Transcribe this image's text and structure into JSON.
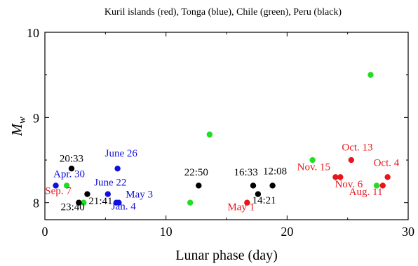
{
  "chart_data": {
    "type": "scatter",
    "title": "Kuril islands (red), Tonga (blue), Chile (green), Peru (black)",
    "xlabel": "Lunar phase (day)",
    "ylabel": "M",
    "ylabel_sub": "w",
    "xlim": [
      0,
      30
    ],
    "ylim": [
      7.8,
      10
    ],
    "xticks": [
      0,
      10,
      20,
      30
    ],
    "yticks": [
      8,
      9,
      10
    ],
    "grid": false,
    "legend": "none",
    "series": [
      {
        "color": "#e8161b",
        "points": [
          {
            "x": 16.7,
            "y": 8.0
          },
          {
            "x": 24.0,
            "y": 8.3
          },
          {
            "x": 24.4,
            "y": 8.3
          },
          {
            "x": 25.3,
            "y": 8.5
          },
          {
            "x": 27.9,
            "y": 8.2
          },
          {
            "x": 28.3,
            "y": 8.3
          }
        ]
      },
      {
        "color": "#1010e0",
        "points": [
          {
            "x": 0.9,
            "y": 8.2
          },
          {
            "x": 5.2,
            "y": 8.1
          },
          {
            "x": 5.9,
            "y": 8.0
          },
          {
            "x": 6.1,
            "y": 8.0
          },
          {
            "x": 6.0,
            "y": 8.4
          }
        ]
      },
      {
        "color": "#22dd22",
        "points": [
          {
            "x": 1.8,
            "y": 8.2
          },
          {
            "x": 3.2,
            "y": 8.0
          },
          {
            "x": 12.0,
            "y": 8.0
          },
          {
            "x": 13.6,
            "y": 8.8
          },
          {
            "x": 22.1,
            "y": 8.5
          },
          {
            "x": 26.9,
            "y": 9.5
          },
          {
            "x": 27.4,
            "y": 8.2
          }
        ]
      },
      {
        "color": "#000000",
        "points": [
          {
            "x": 2.2,
            "y": 8.4
          },
          {
            "x": 2.8,
            "y": 8.0
          },
          {
            "x": 3.5,
            "y": 8.1
          },
          {
            "x": 12.7,
            "y": 8.2
          },
          {
            "x": 17.2,
            "y": 8.2
          },
          {
            "x": 17.6,
            "y": 8.1
          },
          {
            "x": 18.8,
            "y": 8.2
          }
        ]
      }
    ],
    "annotations": [
      {
        "text": "20:33",
        "color": "#000000",
        "x": 2.2,
        "y": 8.48
      },
      {
        "text": "Apr. 30",
        "color": "#1010e0",
        "x": 2.0,
        "y": 8.3
      },
      {
        "text": "Sep. 7",
        "color": "#e8161b",
        "x": 1.1,
        "y": 8.1
      },
      {
        "text": "23:40",
        "color": "#000000",
        "x": 2.3,
        "y": 7.91
      },
      {
        "text": "21:41",
        "color": "#000000",
        "x": 4.6,
        "y": 7.98
      },
      {
        "text": "June 26",
        "color": "#1010e0",
        "x": 6.3,
        "y": 8.54
      },
      {
        "text": "June 22",
        "color": "#1010e0",
        "x": 5.4,
        "y": 8.2
      },
      {
        "text": "May 3",
        "color": "#1010e0",
        "x": 7.8,
        "y": 8.06
      },
      {
        "text": "Jan. 4",
        "color": "#1010e0",
        "x": 6.5,
        "y": 7.92
      },
      {
        "text": "22:50",
        "color": "#000000",
        "x": 12.5,
        "y": 8.32
      },
      {
        "text": "16:33",
        "color": "#000000",
        "x": 16.6,
        "y": 8.32
      },
      {
        "text": "12:08",
        "color": "#000000",
        "x": 19.0,
        "y": 8.33
      },
      {
        "text": "14:21",
        "color": "#000000",
        "x": 18.1,
        "y": 7.99
      },
      {
        "text": "May 1",
        "color": "#e8161b",
        "x": 16.2,
        "y": 7.91
      },
      {
        "text": "Nov. 15",
        "color": "#e8161b",
        "x": 22.2,
        "y": 8.38
      },
      {
        "text": "Oct. 13",
        "color": "#e8161b",
        "x": 25.8,
        "y": 8.61
      },
      {
        "text": "Nov. 6",
        "color": "#e8161b",
        "x": 25.1,
        "y": 8.18
      },
      {
        "text": "Oct. 4",
        "color": "#e8161b",
        "x": 28.2,
        "y": 8.43
      },
      {
        "text": "Aug. 11",
        "color": "#e8161b",
        "x": 26.5,
        "y": 8.09
      }
    ]
  }
}
